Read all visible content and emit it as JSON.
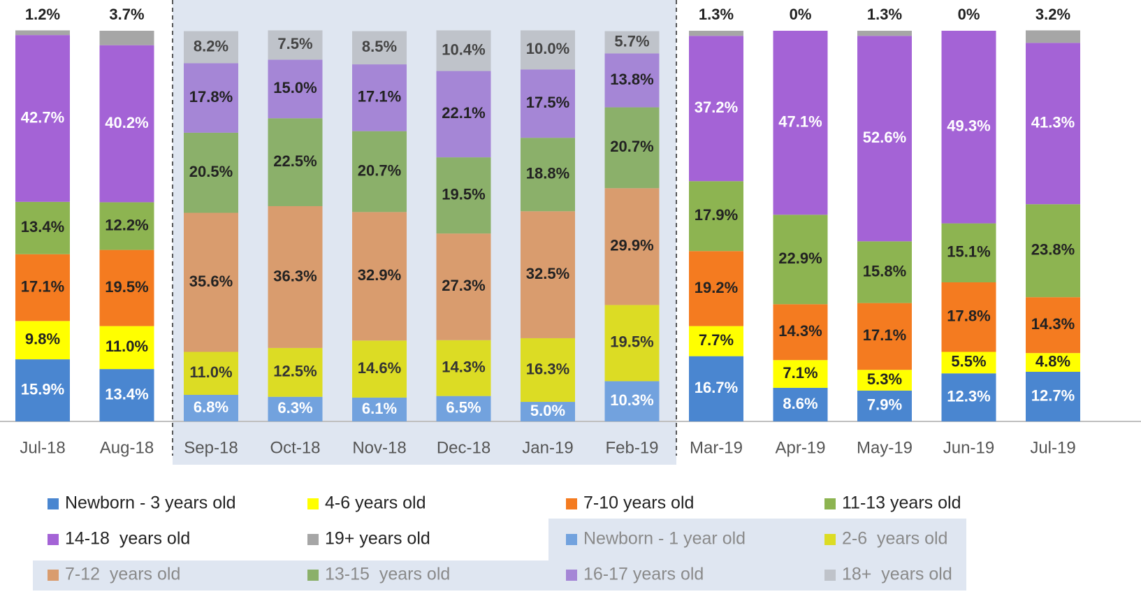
{
  "chart_data": {
    "type": "stacked_bar",
    "categories": [
      "Jul-18",
      "Aug-18",
      "Sep-18",
      "Oct-18",
      "Nov-18",
      "Dec-18",
      "Jan-19",
      "Feb-19",
      "Mar-19",
      "Apr-19",
      "May-19",
      "Jun-19",
      "Jul-19"
    ],
    "ylim": [
      0,
      100
    ],
    "series": [
      {
        "name": "Newborn - 3 years old",
        "color": "#4a86d0",
        "label_color": "#ffffff",
        "values": [
          15.9,
          13.4,
          null,
          null,
          null,
          null,
          null,
          null,
          16.7,
          8.6,
          7.9,
          12.3,
          12.7
        ],
        "value_labels": [
          "15.9%",
          "13.4%",
          null,
          null,
          null,
          null,
          null,
          null,
          "16.7%",
          "8.6%",
          "7.9%",
          "12.3%",
          "12.7%"
        ]
      },
      {
        "name": "4-6 years old",
        "color": "#ffff00",
        "label_color": "#222222",
        "values": [
          9.8,
          11.0,
          null,
          null,
          null,
          null,
          null,
          null,
          7.7,
          7.1,
          5.3,
          5.5,
          4.8
        ],
        "value_labels": [
          "9.8%",
          "11.0%",
          null,
          null,
          null,
          null,
          null,
          null,
          "7.7%",
          "7.1%",
          "5.3%",
          "5.5%",
          "4.8%"
        ]
      },
      {
        "name": "7-10 years old",
        "color": "#f47b20",
        "label_color": "#222222",
        "values": [
          17.1,
          19.5,
          null,
          null,
          null,
          null,
          null,
          null,
          19.2,
          14.3,
          17.1,
          17.8,
          14.3
        ],
        "value_labels": [
          "17.1%",
          "19.5%",
          null,
          null,
          null,
          null,
          null,
          null,
          "19.2%",
          "14.3%",
          "17.1%",
          "17.8%",
          "14.3%"
        ]
      },
      {
        "name": "11-13 years old",
        "color": "#8db451",
        "label_color": "#222222",
        "values": [
          13.4,
          12.2,
          null,
          null,
          null,
          null,
          null,
          null,
          17.9,
          22.9,
          15.8,
          15.1,
          23.8
        ],
        "value_labels": [
          "13.4%",
          "12.2%",
          null,
          null,
          null,
          null,
          null,
          null,
          "17.9%",
          "22.9%",
          "15.8%",
          "15.1%",
          "23.8%"
        ]
      },
      {
        "name": "14-18  years old",
        "color": "#a463d6",
        "label_color": "#ffffff",
        "values": [
          42.7,
          40.2,
          null,
          null,
          null,
          null,
          null,
          null,
          37.2,
          47.1,
          52.6,
          49.3,
          41.3
        ],
        "value_labels": [
          "42.7%",
          "40.2%",
          null,
          null,
          null,
          null,
          null,
          null,
          "37.2%",
          "47.1%",
          "52.6%",
          "49.3%",
          "41.3%"
        ]
      },
      {
        "name": "19+ years old",
        "color": "#a6a6a6",
        "label_color": "#222222",
        "label_position": "above",
        "values": [
          1.2,
          3.7,
          null,
          null,
          null,
          null,
          null,
          null,
          1.3,
          0,
          1.3,
          0,
          3.2
        ],
        "value_labels": [
          "1.2%",
          "3.7%",
          null,
          null,
          null,
          null,
          null,
          null,
          "1.3%",
          "0%",
          "1.3%",
          "0%",
          "3.2%"
        ]
      },
      {
        "name": "Newborn - 1 year old",
        "color": "#72a2de",
        "label_color": "#ffffff",
        "values": [
          null,
          null,
          6.8,
          6.3,
          6.1,
          6.5,
          5.0,
          10.3,
          null,
          null,
          null,
          null,
          null
        ],
        "value_labels": [
          null,
          null,
          "6.8%",
          "6.3%",
          "6.1%",
          "6.5%",
          "5.0%",
          "10.3%",
          null,
          null,
          null,
          null,
          null
        ]
      },
      {
        "name": "2-6  years old",
        "color": "#dcdc24",
        "label_color": "#333333",
        "values": [
          null,
          null,
          11.0,
          12.5,
          14.6,
          14.3,
          16.3,
          19.5,
          null,
          null,
          null,
          null,
          null
        ],
        "value_labels": [
          null,
          null,
          "11.0%",
          "12.5%",
          "14.6%",
          "14.3%",
          "16.3%",
          "19.5%",
          null,
          null,
          null,
          null,
          null
        ]
      },
      {
        "name": "7-12  years old",
        "color": "#d99c6e",
        "label_color": "#222222",
        "values": [
          null,
          null,
          35.6,
          36.3,
          32.9,
          27.3,
          32.5,
          29.9,
          null,
          null,
          null,
          null,
          null
        ],
        "value_labels": [
          null,
          null,
          "35.6%",
          "36.3%",
          "32.9%",
          "27.3%",
          "32.5%",
          "29.9%",
          null,
          null,
          null,
          null,
          null
        ]
      },
      {
        "name": "13-15  years old",
        "color": "#8bb06a",
        "label_color": "#222222",
        "values": [
          null,
          null,
          20.5,
          22.5,
          20.7,
          19.5,
          18.8,
          20.7,
          null,
          null,
          null,
          null,
          null
        ],
        "value_labels": [
          null,
          null,
          "20.5%",
          "22.5%",
          "20.7%",
          "19.5%",
          "18.8%",
          "20.7%",
          null,
          null,
          null,
          null,
          null
        ]
      },
      {
        "name": "16-17 years old",
        "color": "#a586d6",
        "label_color": "#222222",
        "values": [
          null,
          null,
          17.8,
          15.0,
          17.1,
          22.1,
          17.5,
          13.8,
          null,
          null,
          null,
          null,
          null
        ],
        "value_labels": [
          null,
          null,
          "17.8%",
          "15.0%",
          "17.1%",
          "22.1%",
          "17.5%",
          "13.8%",
          null,
          null,
          null,
          null,
          null
        ]
      },
      {
        "name": "18+  years old",
        "color": "#bfc3ca",
        "label_color": "#444444",
        "values": [
          null,
          null,
          8.2,
          7.5,
          8.5,
          10.4,
          10.0,
          5.7,
          null,
          null,
          null,
          null,
          null
        ],
        "value_labels": [
          null,
          null,
          "8.2%",
          "7.5%",
          "8.5%",
          "10.4%",
          "10.0%",
          "5.7%",
          null,
          null,
          null,
          null,
          null
        ]
      }
    ]
  }
}
